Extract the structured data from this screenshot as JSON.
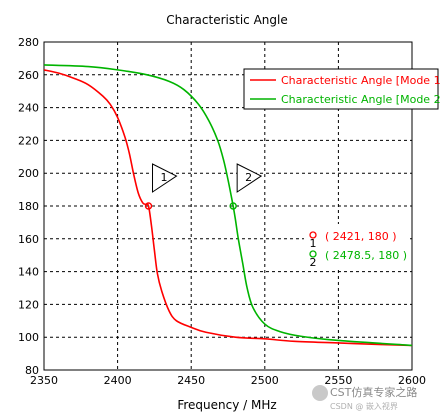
{
  "chart_data": {
    "type": "line",
    "title": "Characteristic Angle",
    "xlabel": "Frequency / MHz",
    "ylabel": "",
    "xlim": [
      2350,
      2600
    ],
    "ylim": [
      80,
      280
    ],
    "xticks": [
      2350,
      2400,
      2450,
      2500,
      2550,
      2600
    ],
    "yticks": [
      80,
      100,
      120,
      140,
      160,
      180,
      200,
      220,
      240,
      260,
      280
    ],
    "grid": true,
    "legend_position": "top-right",
    "series": [
      {
        "name": "Characteristic Angle [Mode 1]",
        "color": "#ff0000",
        "x": [
          2350,
          2360,
          2370,
          2380,
          2390,
          2395,
          2400,
          2405,
          2408,
          2411,
          2414,
          2417,
          2419,
          2421,
          2423,
          2425,
          2427,
          2430,
          2435,
          2440,
          2450,
          2460,
          2480,
          2500,
          2520,
          2550,
          2580,
          2600
        ],
        "y": [
          263,
          261,
          258,
          254,
          247,
          242,
          234,
          222,
          212,
          199,
          188,
          182,
          181,
          180,
          168,
          153,
          139,
          128,
          116,
          110,
          106,
          103,
          100,
          99,
          97.5,
          96.5,
          95.5,
          95
        ]
      },
      {
        "name": "Characteristic Angle [Mode 2]",
        "color": "#00b400",
        "x": [
          2350,
          2380,
          2400,
          2420,
          2435,
          2445,
          2455,
          2462,
          2468,
          2472,
          2475,
          2477,
          2478.5,
          2480,
          2482,
          2485,
          2488,
          2492,
          2500,
          2510,
          2525,
          2550,
          2600
        ],
        "y": [
          266,
          265,
          263,
          260,
          256,
          251,
          242,
          232,
          220,
          208,
          196,
          187,
          180,
          172,
          160,
          145,
          130,
          118,
          108,
          103.5,
          100.5,
          98,
          95
        ]
      }
    ],
    "markers": [
      {
        "id": "1",
        "series": 0,
        "x": 2421,
        "y": 180,
        "label": "( 2421, 180 )"
      },
      {
        "id": "2",
        "series": 1,
        "x": 2478.5,
        "y": 180,
        "label": "( 2478.5, 180 )"
      }
    ]
  },
  "watermark": {
    "text": "CST仿真专家之路",
    "sub": "CSDN @ 嵌入视界"
  }
}
